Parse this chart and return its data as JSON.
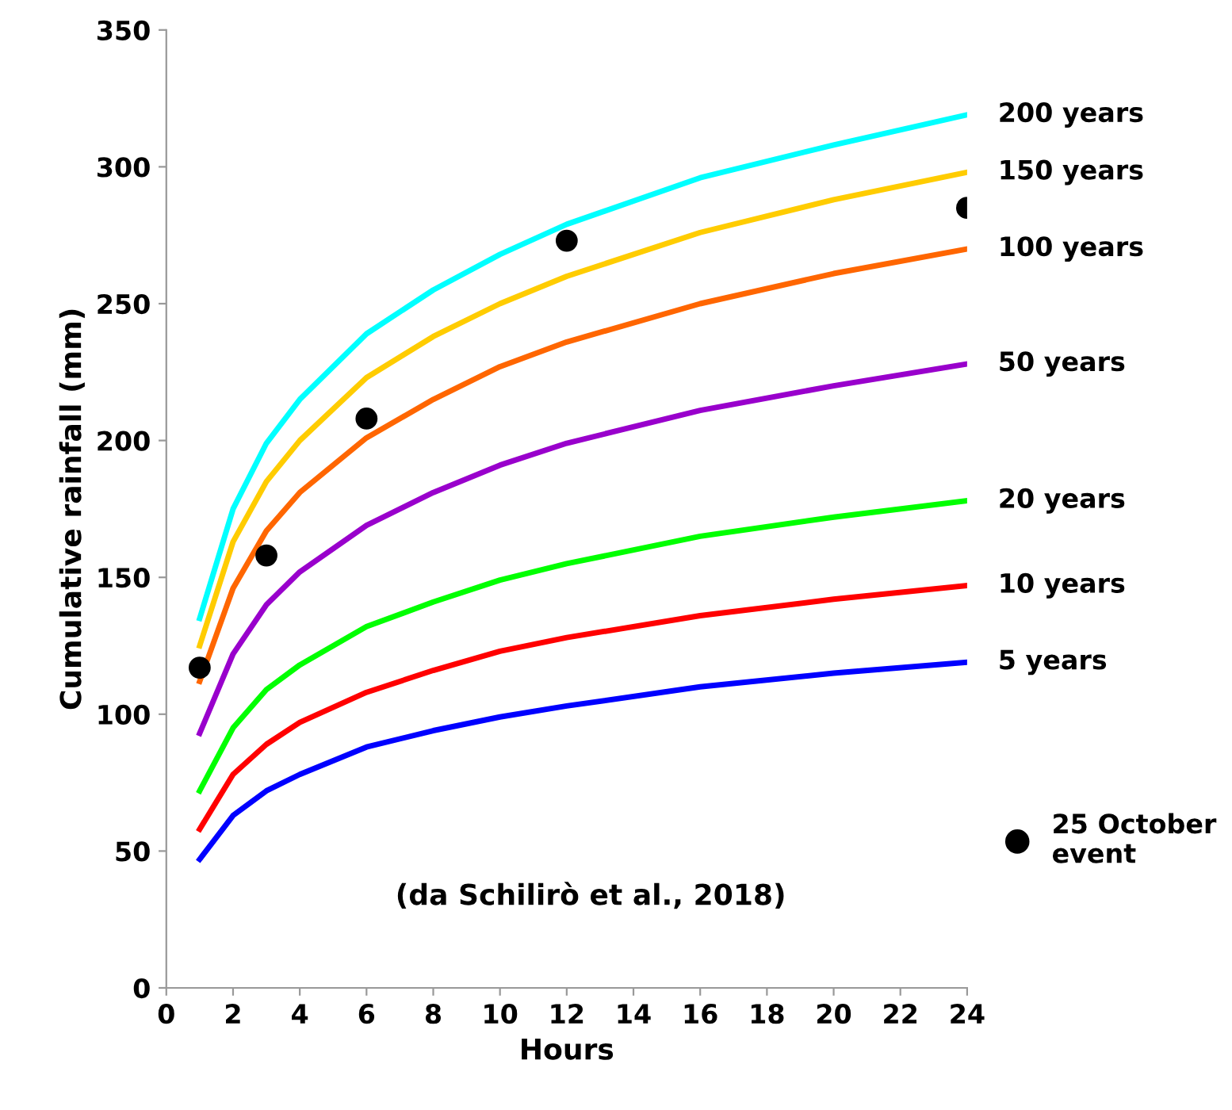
{
  "chart_data": {
    "type": "line",
    "x": [
      1,
      2,
      3,
      4,
      6,
      8,
      10,
      12,
      16,
      20,
      24
    ],
    "xlabel": "Hours",
    "ylabel": "Cumulative rainfall (mm)",
    "xlim": [
      0,
      24
    ],
    "xticks": [
      0,
      2,
      4,
      6,
      8,
      10,
      12,
      14,
      16,
      18,
      20,
      22,
      24
    ],
    "ylim": [
      0,
      350
    ],
    "yticks": [
      0,
      50,
      100,
      150,
      200,
      250,
      300,
      350
    ],
    "grid": false,
    "legend": "bottom right",
    "line_style": "solid",
    "marker": "none",
    "annotations": [
      "(da Schilirò et al., 2018)"
    ],
    "series": [
      {
        "name": "200 years",
        "color": "#00ffff",
        "values": [
          135,
          175,
          199,
          215,
          239,
          255,
          268,
          279,
          296,
          308,
          319
        ]
      },
      {
        "name": "150 years",
        "color": "#ffcc00",
        "values": [
          125,
          163,
          185,
          200,
          223,
          238,
          250,
          260,
          276,
          288,
          298
        ]
      },
      {
        "name": "100 years",
        "color": "#ff6600",
        "values": [
          112,
          146,
          167,
          181,
          201,
          215,
          227,
          236,
          250,
          261,
          270
        ]
      },
      {
        "name": "50 years",
        "color": "#9900cc",
        "values": [
          93,
          122,
          140,
          152,
          169,
          181,
          191,
          199,
          211,
          220,
          228
        ]
      },
      {
        "name": "20 years",
        "color": "#00ff00",
        "values": [
          72,
          95,
          109,
          118,
          132,
          141,
          149,
          155,
          165,
          172,
          178
        ]
      },
      {
        "name": "10 years",
        "color": "#ff0000",
        "values": [
          58,
          78,
          89,
          97,
          108,
          116,
          123,
          128,
          136,
          142,
          147
        ]
      },
      {
        "name": "5 years",
        "color": "#0000ff",
        "values": [
          47,
          63,
          72,
          78,
          88,
          94,
          99,
          103,
          110,
          115,
          119
        ]
      },
      {
        "name": "25 October event",
        "type": "scatter",
        "marker": "circle",
        "color": "#000000",
        "x": [
          1,
          3,
          6,
          12,
          24
        ],
        "values": [
          117,
          158,
          208,
          273,
          285
        ]
      }
    ]
  }
}
